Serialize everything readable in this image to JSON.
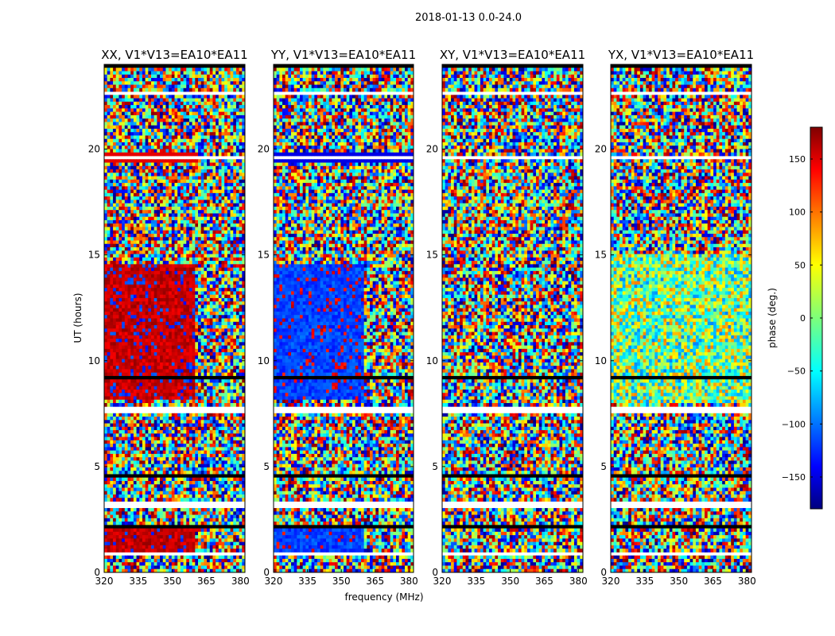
{
  "chart_data": {
    "type": "heatmap",
    "title": "2018-01-13 0.0-24.0",
    "xlabel": "frequency (MHz)",
    "ylabel": "UT (hours)",
    "xlim": [
      320,
      382
    ],
    "ylim": [
      0,
      24
    ],
    "xticks": [
      "320",
      "335",
      "350",
      "365",
      "380"
    ],
    "yticks": [
      "0",
      "5",
      "10",
      "15",
      "20"
    ],
    "panels": [
      {
        "title": "XX, V1*V13=EA10*EA11"
      },
      {
        "title": "YY, V1*V13=EA10*EA11"
      },
      {
        "title": "XY, V1*V13=EA10*EA11"
      },
      {
        "title": "YX, V1*V13=EA10*EA11"
      }
    ],
    "colorbar": {
      "label": "phase (deg.)",
      "min": -180,
      "max": 180,
      "ticks": [
        "150",
        "100",
        "50",
        "0",
        "−50",
        "−100",
        "−150"
      ],
      "colormap": "jet"
    }
  }
}
